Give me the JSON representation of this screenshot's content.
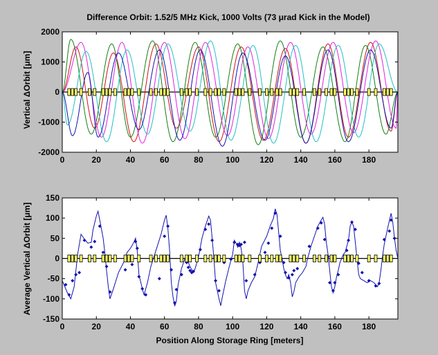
{
  "figure": {
    "background": "#c0c0c0"
  },
  "chart_data": [
    {
      "type": "line",
      "title": "Difference Orbit: 1.52/5 MHz Kick, 1000 Volts (73 μrad Kick in the Model)",
      "xlabel": "",
      "ylabel": "Vertical ΔOrbit [μm]",
      "xlim": [
        0,
        197
      ],
      "ylim": [
        -2000,
        2000
      ],
      "xticks": [
        0,
        20,
        40,
        60,
        80,
        100,
        120,
        140,
        160,
        180
      ],
      "yticks": [
        -2000,
        -1000,
        0,
        1000,
        2000
      ],
      "grid": false,
      "legend": "none",
      "magnets": [
        4,
        6,
        8,
        11,
        16,
        19,
        24,
        26,
        28,
        31,
        37,
        39,
        41,
        45,
        52,
        55,
        58,
        60,
        62,
        70,
        73,
        75,
        79,
        84,
        87,
        90,
        92,
        95,
        102,
        104,
        106,
        110,
        116,
        120,
        123,
        126,
        128,
        134,
        136,
        138,
        142,
        148,
        151,
        155,
        158,
        160,
        166,
        168,
        170,
        173,
        180,
        184,
        189,
        191,
        193
      ],
      "series": [
        {
          "color": "#d01010",
          "peaks": [
            [
              8,
              1500
            ],
            [
              19,
              -1200
            ],
            [
              30,
              1300
            ],
            [
              42,
              -1650
            ],
            [
              55,
              1600
            ],
            [
              67,
              -1200
            ],
            [
              80,
              1500
            ],
            [
              92,
              -1650
            ],
            [
              105,
              1500
            ],
            [
              118,
              -1600
            ],
            [
              131,
              1450
            ],
            [
              143,
              -1700
            ],
            [
              156,
              1600
            ],
            [
              168,
              -1500
            ],
            [
              181,
              1650
            ],
            [
              193,
              -1300
            ]
          ]
        },
        {
          "color": "#108010",
          "peaks": [
            [
              5,
              1750
            ],
            [
              17,
              -1400
            ],
            [
              29,
              1600
            ],
            [
              40,
              -1500
            ],
            [
              53,
              1700
            ],
            [
              65,
              -1650
            ],
            [
              78,
              1650
            ],
            [
              90,
              -1500
            ],
            [
              103,
              1600
            ],
            [
              115,
              -1750
            ],
            [
              128,
              1700
            ],
            [
              140,
              -1500
            ],
            [
              153,
              1500
            ],
            [
              166,
              -1650
            ],
            [
              178,
              1550
            ],
            [
              190,
              -1400
            ]
          ]
        },
        {
          "color": "#e020e0",
          "peaks": [
            [
              11,
              1650
            ],
            [
              23,
              -1500
            ],
            [
              35,
              1650
            ],
            [
              47,
              -1700
            ],
            [
              60,
              1650
            ],
            [
              72,
              -1550
            ],
            [
              84,
              1650
            ],
            [
              97,
              -1450
            ],
            [
              109,
              1500
            ],
            [
              121,
              -1550
            ],
            [
              134,
              1650
            ],
            [
              146,
              -1400
            ],
            [
              159,
              1650
            ],
            [
              171,
              -1350
            ],
            [
              184,
              1700
            ],
            [
              196,
              -1200
            ]
          ]
        },
        {
          "color": "#20c0c0",
          "peaks": [
            [
              3,
              -1100
            ],
            [
              14,
              1350
            ],
            [
              26,
              -1650
            ],
            [
              38,
              1400
            ],
            [
              50,
              -1400
            ],
            [
              62,
              1600
            ],
            [
              75,
              -1300
            ],
            [
              87,
              1700
            ],
            [
              99,
              -1600
            ],
            [
              112,
              1550
            ],
            [
              124,
              -1700
            ],
            [
              137,
              1550
            ],
            [
              149,
              -1650
            ],
            [
              162,
              1550
            ],
            [
              174,
              -1500
            ],
            [
              186,
              1600
            ]
          ]
        },
        {
          "color": "#1010b0",
          "peaks": [
            [
              6,
              -1450
            ],
            [
              15,
              650
            ],
            [
              21,
              -1500
            ],
            [
              33,
              1300
            ],
            [
              45,
              -1250
            ],
            [
              57,
              1400
            ],
            [
              69,
              -1600
            ],
            [
              81,
              1400
            ],
            [
              94,
              -1800
            ],
            [
              106,
              1300
            ],
            [
              119,
              -1600
            ],
            [
              131,
              1200
            ],
            [
              143,
              -1700
            ],
            [
              156,
              1400
            ],
            [
              168,
              -1650
            ],
            [
              181,
              1400
            ],
            [
              193,
              -1200
            ]
          ]
        }
      ]
    },
    {
      "type": "line",
      "title": "",
      "xlabel": "Position Along Storage Ring [meters]",
      "ylabel": "Average Vertical ΔOrbit [μm]",
      "xlim": [
        0,
        197
      ],
      "ylim": [
        -150,
        150
      ],
      "xticks": [
        0,
        20,
        40,
        60,
        80,
        100,
        120,
        140,
        160,
        180
      ],
      "yticks": [
        -150,
        -100,
        -50,
        0,
        50,
        100,
        150
      ],
      "grid": false,
      "legend": "none",
      "magnets": [
        4,
        6,
        8,
        11,
        16,
        19,
        24,
        26,
        28,
        31,
        37,
        39,
        41,
        45,
        52,
        55,
        58,
        60,
        62,
        70,
        73,
        75,
        79,
        84,
        87,
        90,
        92,
        95,
        102,
        104,
        106,
        110,
        116,
        120,
        123,
        126,
        128,
        134,
        136,
        138,
        142,
        148,
        151,
        155,
        158,
        160,
        166,
        168,
        170,
        173,
        180,
        184,
        189,
        191,
        193
      ],
      "line_color": "#1010b0",
      "marker_color": "#1010b0",
      "line": [
        [
          0,
          -55
        ],
        [
          3,
          -85
        ],
        [
          5,
          -100
        ],
        [
          7,
          -70
        ],
        [
          8,
          -30
        ],
        [
          9,
          10
        ],
        [
          11,
          60
        ],
        [
          13,
          48
        ],
        [
          15,
          38
        ],
        [
          17,
          40
        ],
        [
          18,
          70
        ],
        [
          20,
          105
        ],
        [
          21,
          117
        ],
        [
          22,
          95
        ],
        [
          24,
          50
        ],
        [
          25,
          15
        ],
        [
          26,
          -30
        ],
        [
          27,
          -70
        ],
        [
          28,
          -100
        ],
        [
          30,
          -75
        ],
        [
          33,
          -35
        ],
        [
          36,
          -10
        ],
        [
          38,
          15
        ],
        [
          40,
          25
        ],
        [
          42,
          40
        ],
        [
          43,
          50
        ],
        [
          44,
          20
        ],
        [
          45,
          -40
        ],
        [
          47,
          -75
        ],
        [
          48,
          -90
        ],
        [
          50,
          -60
        ],
        [
          52,
          -20
        ],
        [
          55,
          20
        ],
        [
          58,
          60
        ],
        [
          60,
          95
        ],
        [
          61,
          107
        ],
        [
          62,
          75
        ],
        [
          63,
          20
        ],
        [
          64,
          -60
        ],
        [
          65,
          -95
        ],
        [
          66,
          -118
        ],
        [
          67,
          -105
        ],
        [
          68,
          -65
        ],
        [
          70,
          -25
        ],
        [
          72,
          0
        ],
        [
          74,
          -10
        ],
        [
          75,
          -20
        ],
        [
          77,
          -35
        ],
        [
          78,
          -25
        ],
        [
          80,
          5
        ],
        [
          82,
          50
        ],
        [
          84,
          80
        ],
        [
          86,
          105
        ],
        [
          87,
          95
        ],
        [
          88,
          50
        ],
        [
          89,
          0
        ],
        [
          90,
          -60
        ],
        [
          92,
          -100
        ],
        [
          93,
          -117
        ],
        [
          94,
          -95
        ],
        [
          96,
          -55
        ],
        [
          98,
          -20
        ],
        [
          99,
          -5
        ],
        [
          100,
          10
        ],
        [
          101,
          45
        ],
        [
          102,
          38
        ],
        [
          103,
          28
        ],
        [
          104,
          40
        ],
        [
          105,
          25
        ],
        [
          106,
          -10
        ],
        [
          107,
          -80
        ],
        [
          108,
          -100
        ],
        [
          109,
          -80
        ],
        [
          111,
          -60
        ],
        [
          113,
          -45
        ],
        [
          115,
          -10
        ],
        [
          117,
          30
        ],
        [
          120,
          55
        ],
        [
          122,
          80
        ],
        [
          124,
          100
        ],
        [
          125,
          123
        ],
        [
          126,
          110
        ],
        [
          127,
          65
        ],
        [
          128,
          20
        ],
        [
          129,
          0
        ],
        [
          130,
          -25
        ],
        [
          131,
          -40
        ],
        [
          132,
          -50
        ],
        [
          133,
          -40
        ],
        [
          134,
          -60
        ],
        [
          135,
          -95
        ],
        [
          136,
          -82
        ],
        [
          137,
          -60
        ],
        [
          139,
          -45
        ],
        [
          141,
          -35
        ],
        [
          143,
          -20
        ],
        [
          144,
          0
        ],
        [
          145,
          15
        ],
        [
          146,
          30
        ],
        [
          148,
          55
        ],
        [
          150,
          80
        ],
        [
          152,
          95
        ],
        [
          153,
          102
        ],
        [
          154,
          85
        ],
        [
          155,
          40
        ],
        [
          156,
          10
        ],
        [
          157,
          -30
        ],
        [
          158,
          -70
        ],
        [
          159,
          -85
        ],
        [
          160,
          -70
        ],
        [
          161,
          -45
        ],
        [
          162,
          -30
        ],
        [
          163,
          -10
        ],
        [
          164,
          0
        ],
        [
          165,
          10
        ],
        [
          166,
          15
        ],
        [
          168,
          45
        ],
        [
          169,
          80
        ],
        [
          170,
          90
        ],
        [
          171,
          80
        ],
        [
          172,
          40
        ],
        [
          173,
          0
        ],
        [
          174,
          -40
        ],
        [
          175,
          -50
        ],
        [
          177,
          -55
        ],
        [
          179,
          -60
        ],
        [
          181,
          -55
        ],
        [
          183,
          -60
        ],
        [
          185,
          -70
        ],
        [
          186,
          -60
        ],
        [
          187,
          -30
        ],
        [
          188,
          5
        ],
        [
          189,
          35
        ],
        [
          191,
          75
        ],
        [
          193,
          112
        ],
        [
          194,
          90
        ],
        [
          195,
          50
        ],
        [
          196,
          20
        ],
        [
          197,
          0
        ]
      ],
      "points": [
        [
          2,
          -65
        ],
        [
          4,
          -90
        ],
        [
          6,
          -55
        ],
        [
          8,
          -40
        ],
        [
          10,
          -35
        ],
        [
          13,
          45
        ],
        [
          17,
          28
        ],
        [
          19,
          42
        ],
        [
          22,
          80
        ],
        [
          24,
          15
        ],
        [
          26,
          -20
        ],
        [
          28,
          -83
        ],
        [
          37,
          -28
        ],
        [
          39,
          2
        ],
        [
          41,
          -15
        ],
        [
          43,
          42
        ],
        [
          44,
          25
        ],
        [
          45,
          -45
        ],
        [
          47,
          -75
        ],
        [
          49,
          -90
        ],
        [
          57,
          -50
        ],
        [
          60,
          55
        ],
        [
          62,
          80
        ],
        [
          64,
          -28
        ],
        [
          66,
          -110
        ],
        [
          67,
          -77
        ],
        [
          70,
          -40
        ],
        [
          73,
          -10
        ],
        [
          74,
          -22
        ],
        [
          75,
          -30
        ],
        [
          76,
          -35
        ],
        [
          77,
          -32
        ],
        [
          81,
          22
        ],
        [
          84,
          72
        ],
        [
          86,
          85
        ],
        [
          88,
          45
        ],
        [
          90,
          -55
        ],
        [
          92,
          -80
        ],
        [
          95,
          -10
        ],
        [
          99,
          -2
        ],
        [
          101,
          40
        ],
        [
          103,
          35
        ],
        [
          104,
          32
        ],
        [
          105,
          35
        ],
        [
          107,
          40
        ],
        [
          108,
          -55
        ],
        [
          113,
          -40
        ],
        [
          116,
          -10
        ],
        [
          119,
          15
        ],
        [
          121,
          38
        ],
        [
          123,
          75
        ],
        [
          125,
          112
        ],
        [
          128,
          55
        ],
        [
          130,
          -10
        ],
        [
          131,
          -35
        ],
        [
          133,
          -48
        ],
        [
          135,
          -40
        ],
        [
          136,
          -30
        ],
        [
          138,
          -25
        ],
        [
          145,
          30
        ],
        [
          150,
          75
        ],
        [
          152,
          88
        ],
        [
          154,
          47
        ],
        [
          156,
          5
        ],
        [
          157,
          -60
        ],
        [
          159,
          -80
        ],
        [
          160,
          -60
        ],
        [
          162,
          -40
        ],
        [
          167,
          20
        ],
        [
          168,
          45
        ],
        [
          170,
          90
        ],
        [
          172,
          72
        ],
        [
          174,
          -12
        ],
        [
          176,
          -35
        ],
        [
          180,
          -55
        ],
        [
          184,
          -68
        ],
        [
          186,
          -62
        ],
        [
          189,
          47
        ],
        [
          192,
          68
        ],
        [
          193,
          95
        ],
        [
          195,
          50
        ]
      ]
    }
  ]
}
